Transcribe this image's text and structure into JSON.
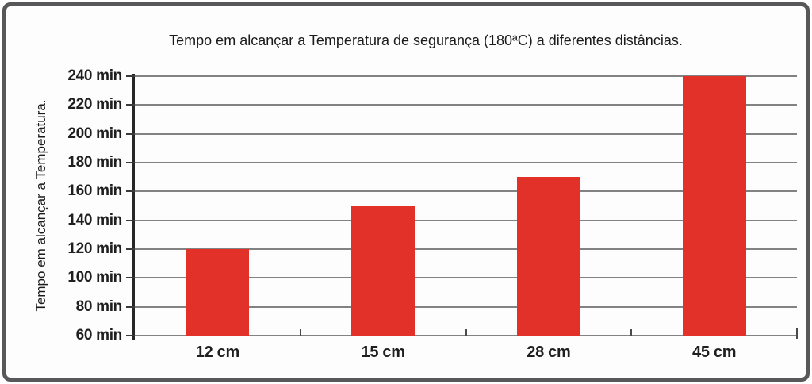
{
  "chart_data": {
    "type": "bar",
    "title": "Tempo em alcançar a Temperatura de segurança (180ªC) a diferentes distâncias.",
    "ylabel": "Tempo em alcançar a Temperatura.",
    "xlabel": "",
    "categories": [
      "12 cm",
      "15 cm",
      "28 cm",
      "45 cm"
    ],
    "values": [
      120,
      150,
      170,
      240
    ],
    "ylim": [
      60,
      240
    ],
    "ytick_step": 20,
    "ytick_suffix": " min",
    "grid": true,
    "legend": "none",
    "bar_color": "#e23128"
  }
}
